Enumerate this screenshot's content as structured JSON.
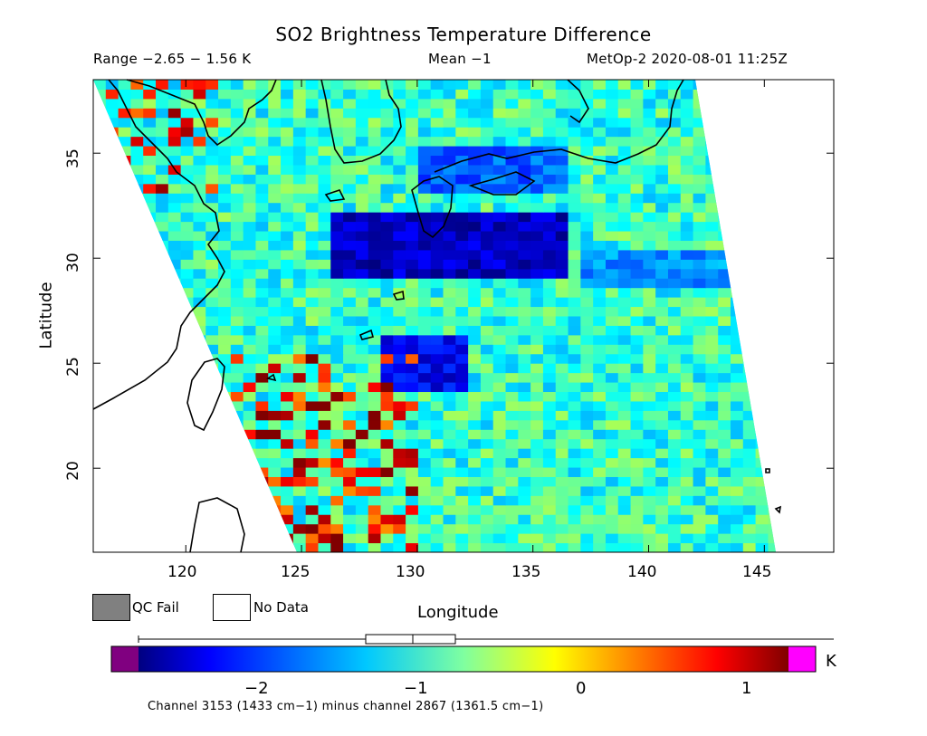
{
  "title": "SO2 Brightness Temperature Difference",
  "subtitle": {
    "range": "Range −2.65 − 1.56 K",
    "mean": "Mean −1",
    "satellite_time": "MetOp-2 2020-08-01 11:25Z"
  },
  "chart_data": {
    "type": "heatmap",
    "title": "SO2 Brightness Temperature Difference",
    "xlabel": "Longitude",
    "ylabel": "Latitude",
    "xlim": [
      116,
      148
    ],
    "ylim": [
      16,
      38.5
    ],
    "x_ticks": [
      "120",
      "125",
      "130",
      "135",
      "140",
      "145"
    ],
    "y_ticks": [
      "20",
      "25",
      "30",
      "35"
    ],
    "value_range": [
      -2.65,
      1.56
    ],
    "mean": -1,
    "units": "K",
    "colorbar": {
      "min": -2.65,
      "max": 1.25,
      "ticks": [
        "−2",
        "−1",
        "0",
        "1"
      ],
      "unit_label": "K",
      "underflow_color": "#800080",
      "overflow_color": "#ff00ff"
    },
    "features": [
      {
        "lat_band": [
          29,
          32
        ],
        "lon_band": [
          126,
          136
        ],
        "value": -2.4
      },
      {
        "lat_band": [
          23.5,
          26
        ],
        "lon_band": [
          128,
          132
        ],
        "value": -2.2
      },
      {
        "lat_band": [
          28.5,
          30
        ],
        "lon_band": [
          137,
          143
        ],
        "value": -1.6
      },
      {
        "lat_band": [
          33,
          35
        ],
        "lon_band": [
          130,
          136
        ],
        "value": -1.8
      }
    ]
  },
  "legend": {
    "qc_fail": "QC Fail",
    "no_data": "No Data",
    "qc_fail_color": "#808080",
    "no_data_color": "#ffffff"
  },
  "footnote": "Channel 3153 (1433 cm−1) minus channel 2867 (1361.5 cm−1)"
}
